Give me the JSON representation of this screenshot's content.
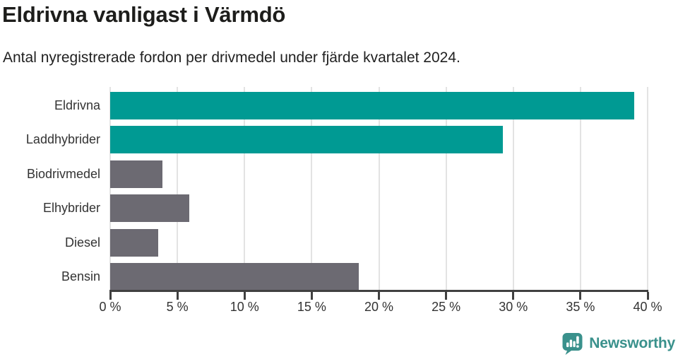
{
  "chart_data": {
    "type": "bar",
    "orientation": "horizontal",
    "title": "Eldrivna vanligast i Värmdö",
    "subtitle": "Antal nyregistrerade fordon per drivmedel under fjärde kvartalet 2024.",
    "categories": [
      "Eldrivna",
      "Laddhybrider",
      "Biodrivmedel",
      "Elhybrider",
      "Diesel",
      "Bensin"
    ],
    "values": [
      39.0,
      29.2,
      3.9,
      5.9,
      3.6,
      18.5
    ],
    "unit": "%",
    "xlim": [
      0,
      40
    ],
    "x_ticks": [
      0,
      5,
      10,
      15,
      20,
      25,
      30,
      35,
      40
    ],
    "x_tick_labels": [
      "0 %",
      "5 %",
      "10 %",
      "15 %",
      "20 %",
      "25 %",
      "30 %",
      "35 %",
      "40 %"
    ],
    "bar_colors": [
      "#009a93",
      "#009a93",
      "#6c6a72",
      "#6c6a72",
      "#6c6a72",
      "#6c6a72"
    ],
    "highlight_color": "#009a93",
    "default_color": "#6c6a72",
    "grid": true,
    "legend": "none",
    "ylabel": "",
    "xlabel": ""
  },
  "footer": {
    "brand": "Newsworthy",
    "brand_color": "#3a918c",
    "icon": "newsworthy-speech-bubble-barchart-icon"
  }
}
